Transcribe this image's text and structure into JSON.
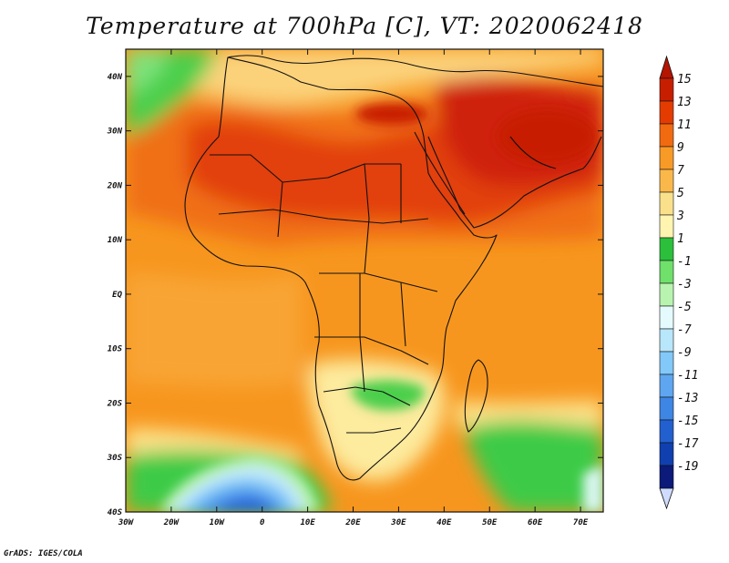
{
  "map": {
    "title": "Temperature at 700hPa [C], VT: 2020062418",
    "credit": "GrADS: IGES/COLA",
    "lon_range": [
      -30,
      75
    ],
    "lat_range": [
      -40,
      45
    ],
    "lon_ticks": [
      "30W",
      "20W",
      "10W",
      "0",
      "10E",
      "20E",
      "30E",
      "40E",
      "50E",
      "60E",
      "70E"
    ],
    "lat_ticks": [
      "40N",
      "30N",
      "20N",
      "10N",
      "EQ",
      "10S",
      "20S",
      "30S",
      "40S"
    ],
    "lon_tick_values": [
      -30,
      -20,
      -10,
      0,
      10,
      20,
      30,
      40,
      50,
      60,
      70
    ],
    "lat_tick_values": [
      40,
      30,
      20,
      10,
      0,
      -10,
      -20,
      -30,
      -40
    ]
  },
  "colorbar": {
    "labels": [
      "15",
      "13",
      "11",
      "9",
      "7",
      "5",
      "3",
      "1",
      "-1",
      "-3",
      "-5",
      "-7",
      "-9",
      "-11",
      "-13",
      "-15",
      "-17",
      "-19"
    ],
    "colors": [
      "#c81e00",
      "#e43c00",
      "#f26a10",
      "#f89a26",
      "#fbb84a",
      "#fbe08c",
      "#fff4b0",
      "#2bbf3c",
      "#6fe06a",
      "#b8f4b0",
      "#e4fafc",
      "#b8e6fa",
      "#82c8f8",
      "#5ea6f0",
      "#3e86e4",
      "#2260d0",
      "#1040b0",
      "#0c1a7a"
    ],
    "top_arrow_color": "#b41400",
    "bottom_arrow_color": "#cfdcff"
  }
}
